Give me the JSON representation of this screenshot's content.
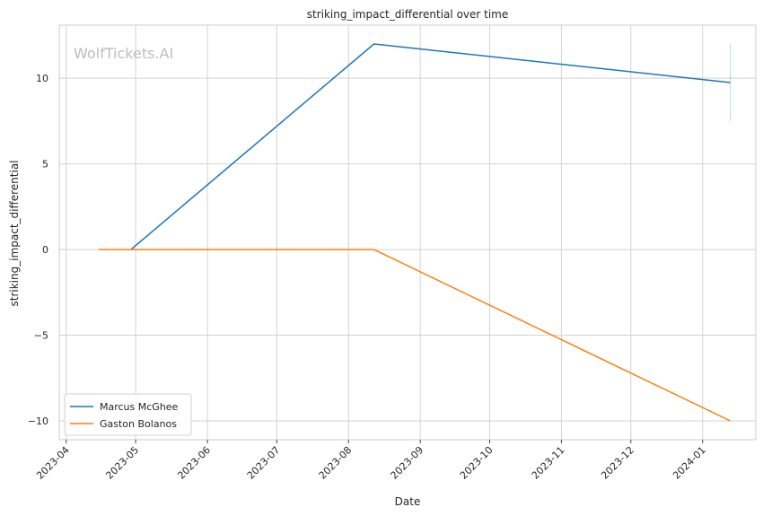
{
  "chart_data": {
    "type": "line",
    "title": "striking_impact_differential over time",
    "xlabel": "Date",
    "ylabel": "striking_impact_differential",
    "watermark": "WolfTickets.AI",
    "x_ticks": [
      "2023-04",
      "2023-05",
      "2023-06",
      "2023-07",
      "2023-08",
      "2023-09",
      "2023-10",
      "2023-11",
      "2023-12",
      "2024-01"
    ],
    "y_ticks": [
      10,
      5,
      0,
      -5,
      -10
    ],
    "y_tick_labels": [
      "10",
      "5",
      "0",
      "−5",
      "−10"
    ],
    "xlim": [
      "2023-03-29",
      "2024-01-24"
    ],
    "ylim": [
      -11.1,
      13.1
    ],
    "grid": true,
    "legend_position": "lower-left",
    "series": [
      {
        "name": "Marcus McGhee",
        "color": "#1f77b4",
        "x": [
          "2023-04-29",
          "2023-08-12",
          "2024-01-13"
        ],
        "y": [
          0,
          12,
          9.75
        ]
      },
      {
        "name": "Gaston Bolanos",
        "color": "#ff7f0e",
        "x": [
          "2023-04-15",
          "2023-08-12",
          "2024-01-13"
        ],
        "y": [
          0,
          0,
          -10
        ]
      }
    ],
    "error_band": {
      "series": "Marcus McGhee",
      "x": "2024-01-13",
      "y_low": 7.5,
      "y_high": 12
    }
  }
}
